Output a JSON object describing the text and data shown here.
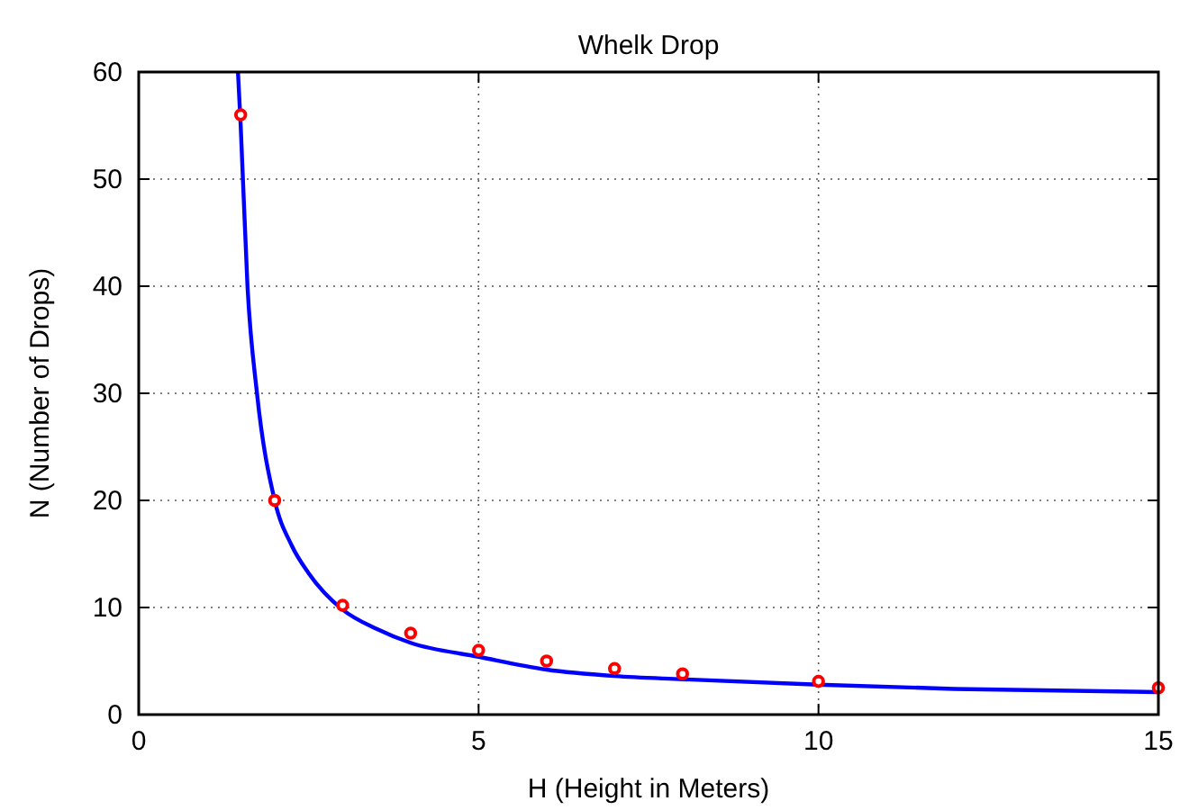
{
  "chart_data": {
    "type": "scatter",
    "title": "Whelk Drop",
    "xlabel": "H (Height in Meters)",
    "ylabel": "N (Number of Drops)",
    "series": [
      {
        "type": "line",
        "color": "#0000ff",
        "marker": "none",
        "x": [
          1.46,
          1.5,
          1.6,
          1.74,
          2,
          2.25,
          2.5,
          3,
          3.5,
          4,
          5,
          6,
          7,
          8,
          10,
          12,
          15
        ],
        "values": [
          60,
          55,
          40,
          30,
          20,
          15.8,
          13.2,
          9.8,
          8,
          6.7,
          5.4,
          4.2,
          3.6,
          3.3,
          2.8,
          2.4,
          2.1
        ]
      },
      {
        "color": "#ff0000",
        "marker": "circle",
        "x": [
          1.5,
          2,
          3,
          4,
          5,
          6,
          7,
          8,
          10,
          15
        ],
        "values": [
          56,
          20,
          10.2,
          7.6,
          6,
          5,
          4.3,
          3.8,
          3.1,
          2.5
        ]
      }
    ],
    "xlim": [
      0,
      15
    ],
    "xticks": [
      0,
      5,
      10,
      15
    ],
    "ylim": [
      0,
      60
    ],
    "yticks": [
      0,
      10,
      20,
      30,
      40,
      50,
      60
    ],
    "grid": true
  }
}
